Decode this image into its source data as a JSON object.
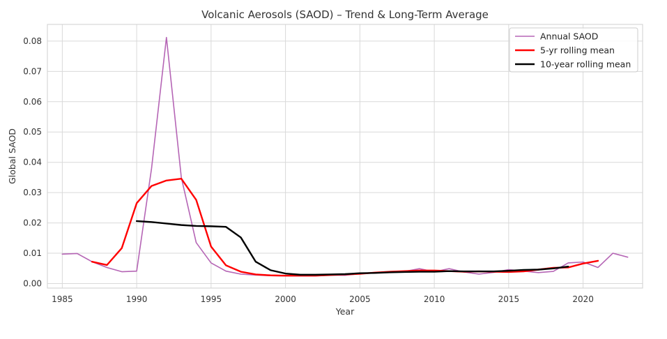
{
  "chart_data": {
    "type": "line",
    "title": "Volcanic Aerosols (SAOD) – Trend & Long-Term Average",
    "xlabel": "Year",
    "ylabel": "Global SAOD",
    "xlim": [
      1984,
      2024
    ],
    "ylim": [
      -0.0015,
      0.0855
    ],
    "x_ticks": [
      1985,
      1990,
      1995,
      2000,
      2005,
      2010,
      2015,
      2020
    ],
    "y_ticks": [
      0.0,
      0.01,
      0.02,
      0.03,
      0.04,
      0.05,
      0.06,
      0.07,
      0.08
    ],
    "y_tick_labels": [
      "0.00",
      "0.01",
      "0.02",
      "0.03",
      "0.04",
      "0.05",
      "0.06",
      "0.07",
      "0.08"
    ],
    "grid": true,
    "legend_position": "top-right",
    "series": [
      {
        "name": "Annual SAOD",
        "color": "#b565b5",
        "width": 1.6,
        "x": [
          1985,
          1986,
          1987,
          1988,
          1989,
          1990,
          1991,
          1992,
          1993,
          1994,
          1995,
          1996,
          1997,
          1998,
          1999,
          2000,
          2001,
          2002,
          2003,
          2004,
          2005,
          2006,
          2007,
          2008,
          2009,
          2010,
          2011,
          2012,
          2013,
          2014,
          2015,
          2016,
          2017,
          2018,
          2019,
          2020,
          2021,
          2022,
          2023
        ],
        "values": [
          0.0097,
          0.0099,
          0.0072,
          0.0053,
          0.0039,
          0.0041,
          0.038,
          0.0812,
          0.035,
          0.0135,
          0.0068,
          0.0041,
          0.0031,
          0.0028,
          0.0026,
          0.0025,
          0.0025,
          0.0025,
          0.0028,
          0.0027,
          0.0033,
          0.0035,
          0.0039,
          0.004,
          0.0049,
          0.0039,
          0.0049,
          0.0038,
          0.0031,
          0.0037,
          0.0046,
          0.0041,
          0.0036,
          0.004,
          0.0068,
          0.0071,
          0.0053,
          0.01,
          0.0087
        ]
      },
      {
        "name": "5-yr rolling mean",
        "color": "#ff0000",
        "width": 2.4,
        "x": [
          1987,
          1988,
          1989,
          1990,
          1991,
          1992,
          1993,
          1994,
          1995,
          1996,
          1997,
          1998,
          1999,
          2000,
          2001,
          2002,
          2003,
          2004,
          2005,
          2006,
          2007,
          2008,
          2009,
          2010,
          2011,
          2012,
          2013,
          2014,
          2015,
          2016,
          2017,
          2018,
          2019,
          2020,
          2021
        ],
        "values": [
          0.0072,
          0.0061,
          0.0117,
          0.0265,
          0.0322,
          0.034,
          0.0346,
          0.0276,
          0.0122,
          0.006,
          0.0039,
          0.003,
          0.0027,
          0.0026,
          0.0026,
          0.0026,
          0.0028,
          0.003,
          0.0032,
          0.0036,
          0.0039,
          0.0041,
          0.0043,
          0.0043,
          0.0041,
          0.0039,
          0.004,
          0.0039,
          0.0038,
          0.004,
          0.0046,
          0.0052,
          0.0053,
          0.0066,
          0.0075
        ]
      },
      {
        "name": "10-year rolling mean",
        "color": "#000000",
        "width": 2.4,
        "x": [
          1990,
          1991,
          1992,
          1993,
          1994,
          1995,
          1996,
          1997,
          1998,
          1999,
          2000,
          2001,
          2002,
          2003,
          2004,
          2005,
          2006,
          2007,
          2008,
          2009,
          2010,
          2011,
          2012,
          2013,
          2014,
          2015,
          2016,
          2017,
          2018,
          2019
        ],
        "values": [
          0.0206,
          0.0203,
          0.0198,
          0.0193,
          0.019,
          0.0189,
          0.0187,
          0.0152,
          0.0072,
          0.0044,
          0.0033,
          0.0029,
          0.0029,
          0.003,
          0.0031,
          0.0034,
          0.0035,
          0.0037,
          0.0038,
          0.0039,
          0.0039,
          0.0041,
          0.004,
          0.004,
          0.004,
          0.0042,
          0.0045,
          0.0046,
          0.005,
          0.0056
        ]
      }
    ]
  }
}
